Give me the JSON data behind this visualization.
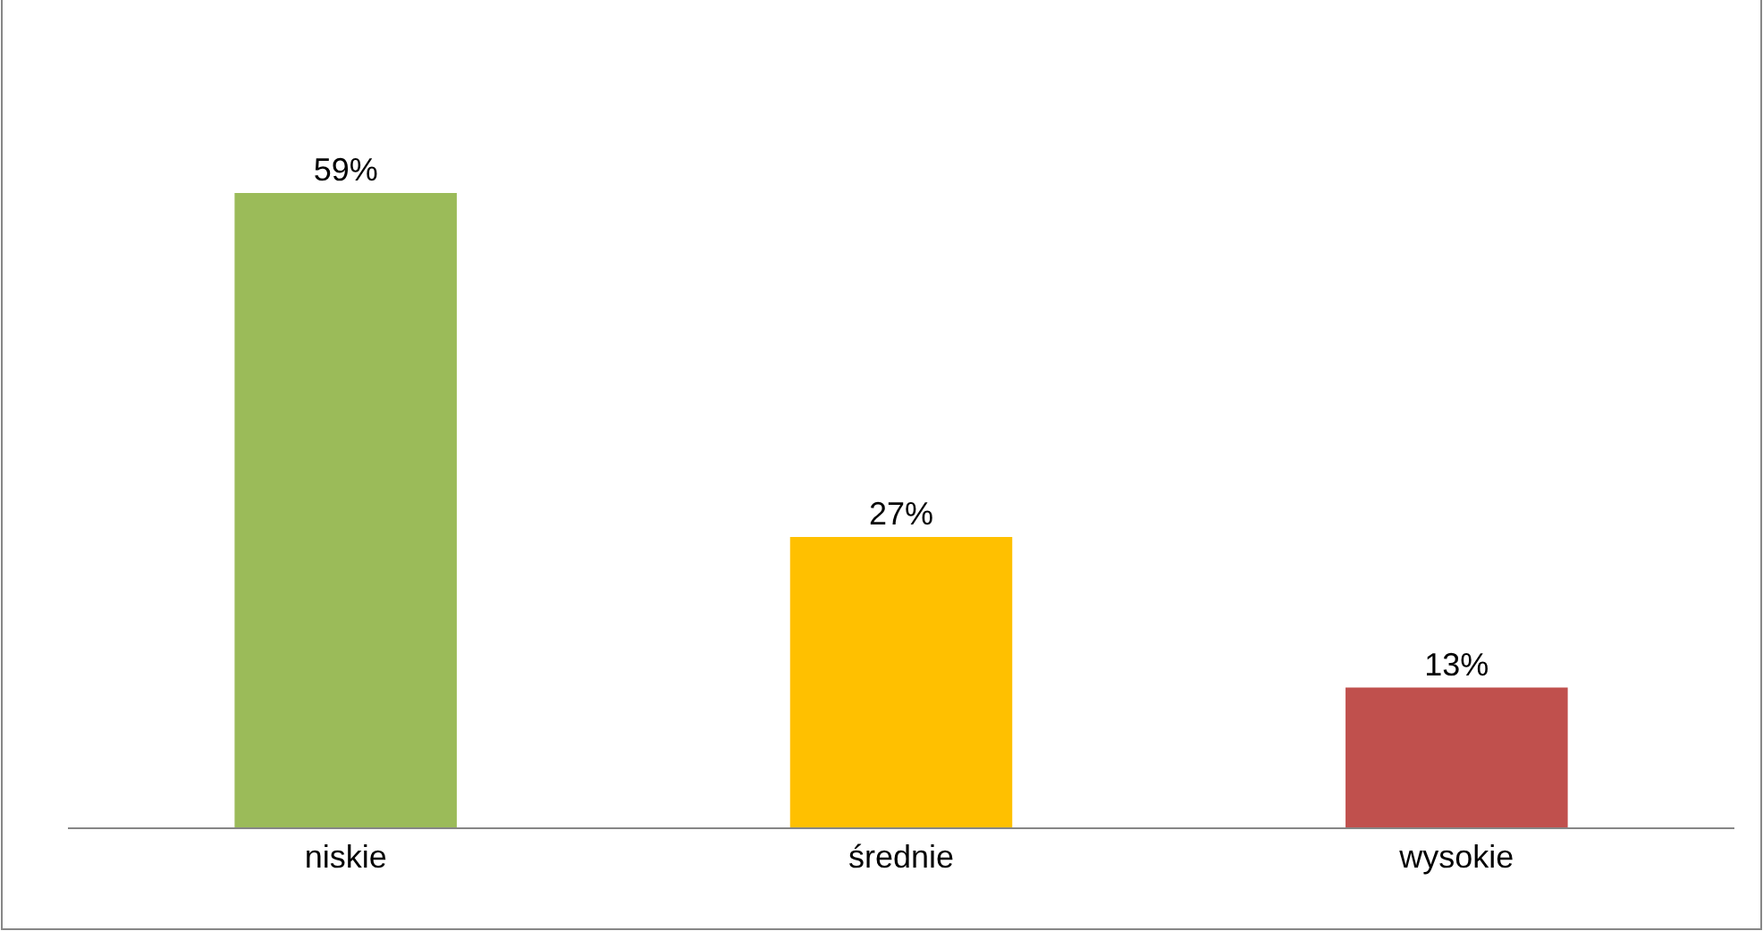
{
  "chart_data": {
    "type": "bar",
    "categories": [
      "niskie",
      "średnie",
      "wysokie"
    ],
    "values": [
      59,
      27,
      13
    ],
    "colors": [
      "#9bbb59",
      "#ffc000",
      "#c0504d"
    ],
    "value_labels": [
      "59%",
      "27%",
      "13%"
    ]
  }
}
